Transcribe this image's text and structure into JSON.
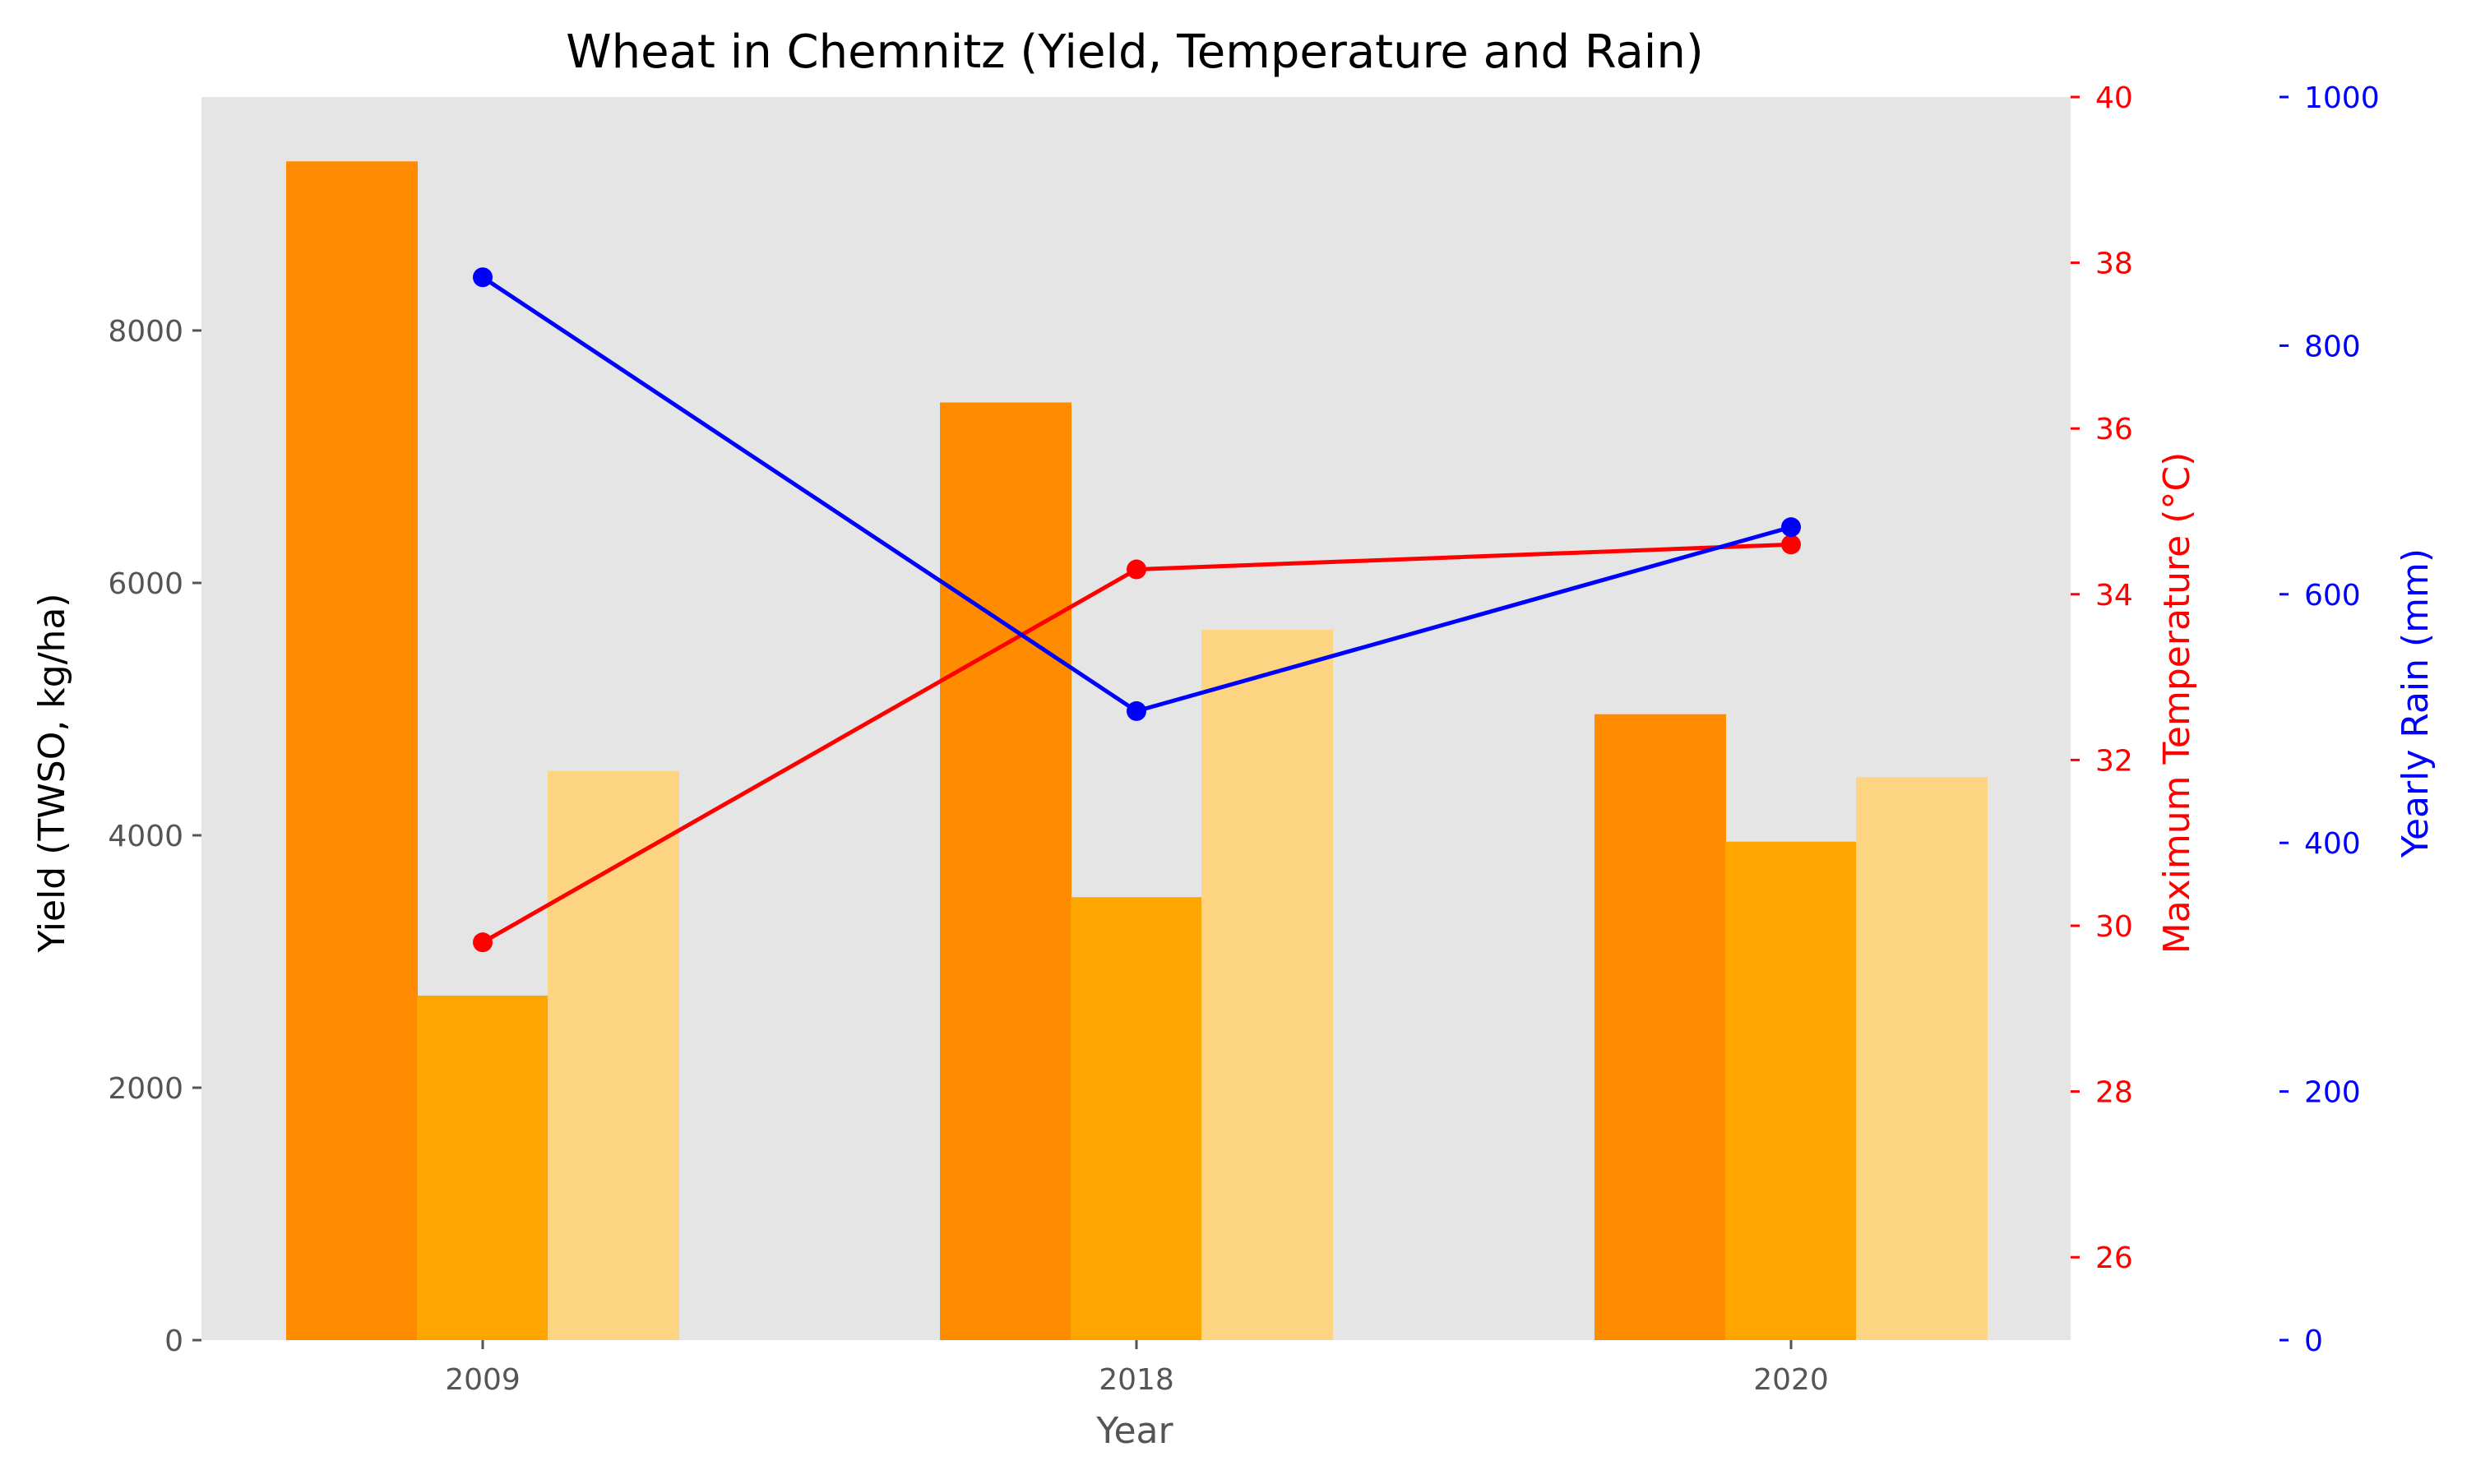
{
  "chart_data": {
    "type": "bar",
    "title": "Wheat in Chemnitz (Yield, Temperature and Rain)",
    "xlabel": "Year",
    "categories": [
      "2009",
      "2018",
      "2020"
    ],
    "grid": false,
    "background": "#e5e5e5",
    "yield_axis": {
      "label": "Yield (TWSO, kg/ha)",
      "ylim": [
        0,
        9850
      ],
      "ticks": [
        0,
        2000,
        4000,
        6000,
        8000
      ],
      "tick_labels": [
        "0",
        "2000",
        "4000",
        "6000",
        "8000"
      ],
      "color": "#555555"
    },
    "temperature_axis": {
      "label": "Maximum Temperature (°C)",
      "ylim": [
        25,
        40
      ],
      "ticks": [
        26,
        28,
        30,
        32,
        34,
        36,
        38,
        40
      ],
      "tick_labels": [
        "26",
        "28",
        "30",
        "32",
        "34",
        "36",
        "38",
        "40"
      ],
      "color": "#ff0000"
    },
    "rain_axis": {
      "label": "Yearly Rain (mm)",
      "ylim": [
        0,
        1000
      ],
      "ticks": [
        0,
        200,
        400,
        600,
        800,
        1000
      ],
      "tick_labels": [
        "0",
        "200",
        "400",
        "600",
        "800",
        "1000"
      ],
      "color": "#0000ff"
    },
    "bar_series": [
      {
        "color": "#ff8c00",
        "values": [
          9340,
          7430,
          4960
        ]
      },
      {
        "color": "#ffa500",
        "values": [
          2730,
          3510,
          3950
        ]
      },
      {
        "color": "#fdd482",
        "values": [
          4510,
          5630,
          4460
        ]
      }
    ],
    "line_series": [
      {
        "axis": "temperature",
        "color": "#ff0000",
        "values": [
          29.8,
          34.3,
          34.6
        ]
      },
      {
        "axis": "rain",
        "color": "#0000ff",
        "values": [
          855,
          506,
          654
        ]
      }
    ]
  }
}
